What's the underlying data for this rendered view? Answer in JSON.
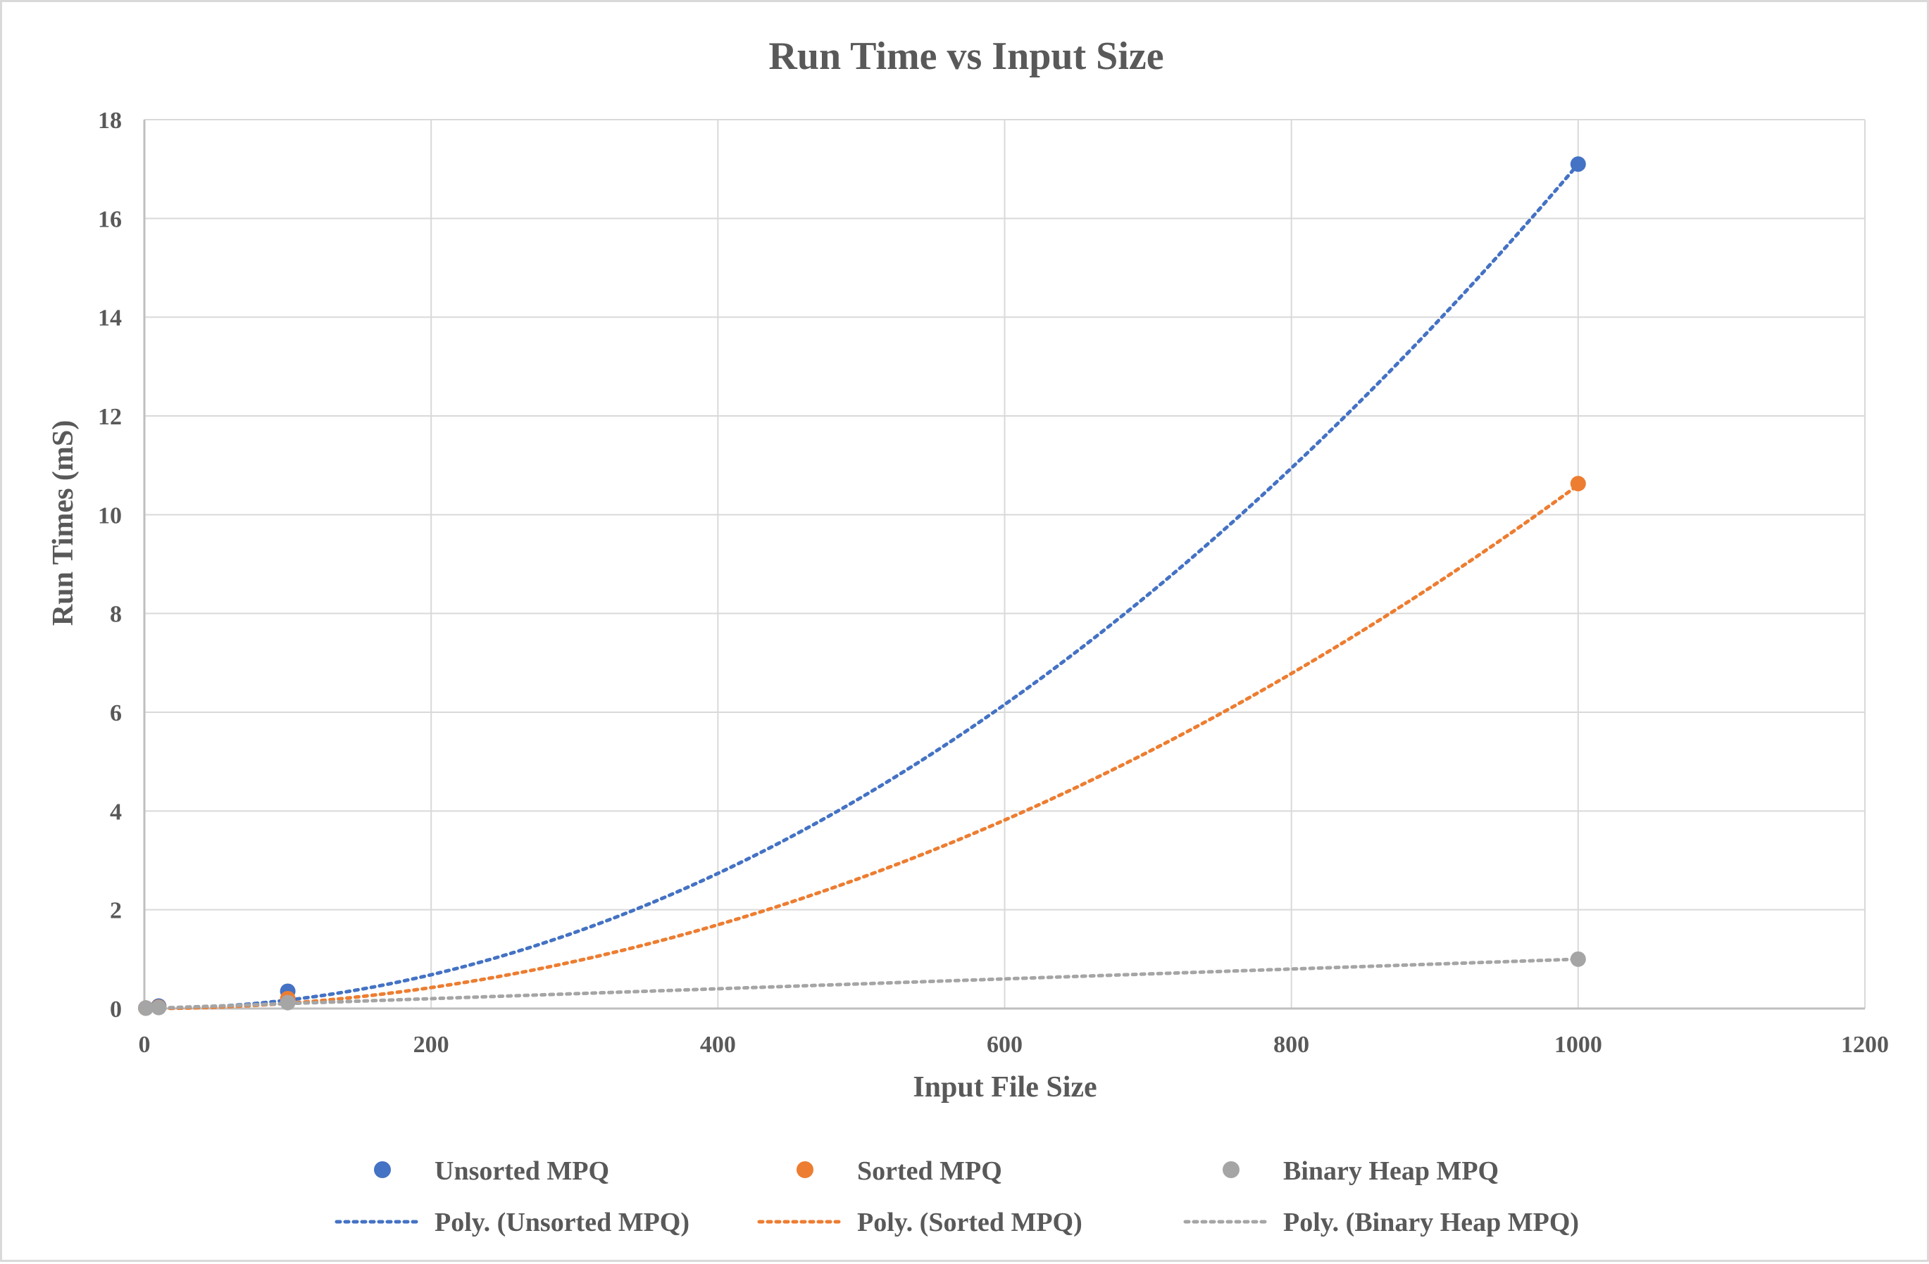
{
  "chart_data": {
    "type": "scatter",
    "title": "Run Time vs Input Size",
    "xlabel": "Input File Size",
    "ylabel": "Run Times (mS)",
    "xlim": [
      0,
      1200
    ],
    "ylim": [
      0,
      18
    ],
    "x_ticks": [
      0,
      200,
      400,
      600,
      800,
      1000,
      1200
    ],
    "y_ticks": [
      0,
      2,
      4,
      6,
      8,
      10,
      12,
      14,
      16,
      18
    ],
    "grid": true,
    "legend_position": "bottom",
    "series": [
      {
        "name": "Unsorted MPQ",
        "color": "#4472c4",
        "points": [
          {
            "x": 1,
            "y": 0.01
          },
          {
            "x": 10,
            "y": 0.05
          },
          {
            "x": 100,
            "y": 0.35
          },
          {
            "x": 1000,
            "y": 17.1
          }
        ],
        "trendline": {
          "name": "Poly. (Unsorted MPQ)",
          "type": "polynomial",
          "order": 2,
          "coefficients": [
            1.71e-05,
            0.0,
            0.0
          ]
        }
      },
      {
        "name": "Sorted MPQ",
        "color": "#ed7d31",
        "points": [
          {
            "x": 1,
            "y": 0.01
          },
          {
            "x": 10,
            "y": 0.03
          },
          {
            "x": 100,
            "y": 0.2
          },
          {
            "x": 1000,
            "y": 10.63
          }
        ],
        "trendline": {
          "name": "Poly. (Sorted MPQ)",
          "type": "polynomial",
          "order": 2,
          "coefficients": [
            1.06e-05,
            0.0,
            0.0
          ]
        }
      },
      {
        "name": "Binary Heap MPQ",
        "color": "#a5a5a5",
        "points": [
          {
            "x": 1,
            "y": 0.01
          },
          {
            "x": 10,
            "y": 0.02
          },
          {
            "x": 100,
            "y": 0.12
          },
          {
            "x": 1000,
            "y": 1.0
          }
        ],
        "trendline": {
          "name": "Poly. (Binary Heap MPQ)",
          "type": "polynomial",
          "order": 2,
          "coefficients": [
            0.0,
            0.001,
            0.0
          ]
        }
      }
    ]
  }
}
